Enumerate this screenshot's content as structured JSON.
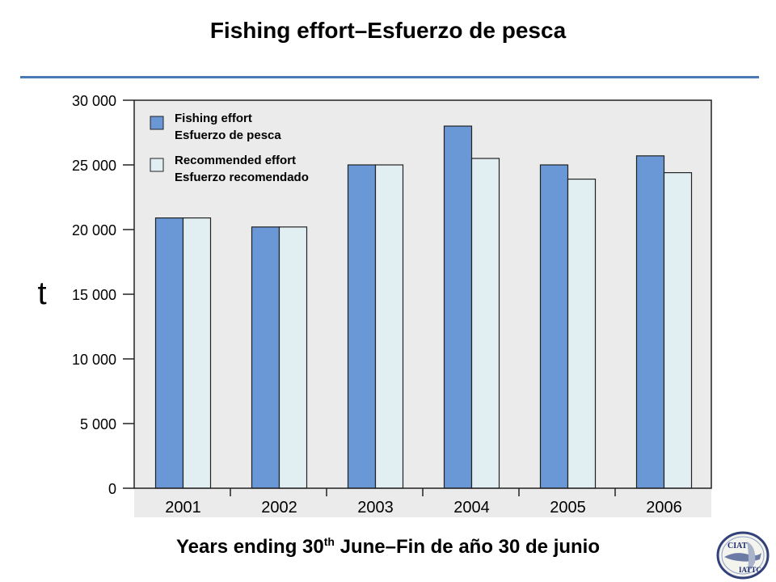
{
  "slide": {
    "title": "Fishing effort–Esfuerzo de pesca"
  },
  "x_caption": {
    "before_sup": "Years ending 30",
    "sup": "th",
    "after_sup": " June–Fin de año 30 de junio"
  },
  "logo": {
    "text_top": "CIAT",
    "text_bottom": "IATTC",
    "icon": "tuna-globe-logo-icon"
  },
  "chart_data": {
    "type": "bar",
    "title": "",
    "xlabel": "",
    "ylabel": "t",
    "ylim": [
      0,
      30000
    ],
    "yticks": [
      0,
      5000,
      10000,
      15000,
      20000,
      25000,
      30000
    ],
    "ytick_labels": [
      "0",
      "5 000",
      "10 000",
      "15 000",
      "20 000",
      "25 000",
      "30 000"
    ],
    "categories": [
      "2001",
      "2002",
      "2003",
      "2004",
      "2005",
      "2006"
    ],
    "series": [
      {
        "name": "Fishing effort\nEsfuerzo de pesca",
        "color": "#6a97d6",
        "values": [
          20900,
          20200,
          25000,
          28000,
          25000,
          25700
        ]
      },
      {
        "name": "Recommended effort\nEsfuerzo recomendado",
        "color": "#e1eff3",
        "values": [
          20900,
          20200,
          25000,
          25500,
          23900,
          24400
        ]
      }
    ],
    "legend_position": "top-left",
    "grid": false
  }
}
